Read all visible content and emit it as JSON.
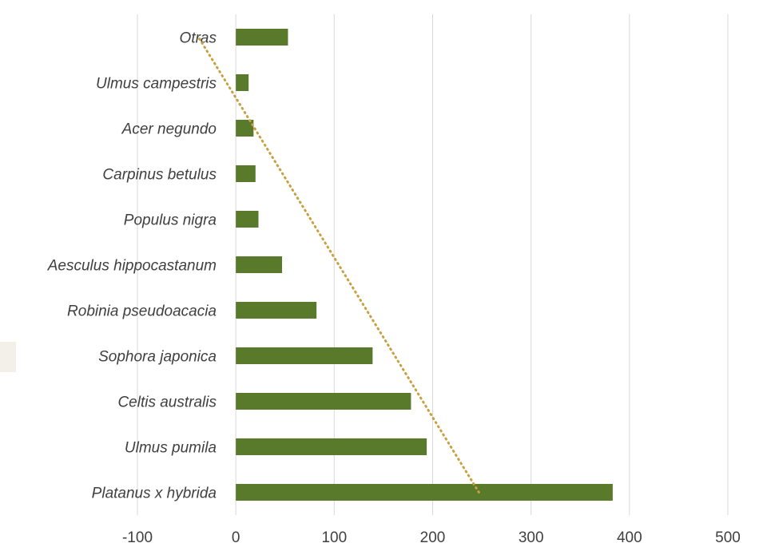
{
  "chart_data": {
    "type": "bar",
    "orientation": "horizontal",
    "categories": [
      "Platanus x hybrida",
      "Ulmus pumila",
      "Celtis australis",
      "Sophora japonica",
      "Robinia pseudoacacia",
      "Aesculus hippocastanum",
      "Populus nigra",
      "Carpinus betulus",
      "Acer negundo",
      "Ulmus campestris",
      "Otras"
    ],
    "values": [
      383,
      194,
      178,
      139,
      82,
      47,
      23,
      20,
      18,
      13,
      53
    ],
    "xlim": [
      -100,
      500
    ],
    "xticks": [
      "-100",
      "0",
      "100",
      "200",
      "300",
      "400",
      "500"
    ],
    "grid": true,
    "trendline": {
      "type": "linear",
      "style": "dotted",
      "from": {
        "category": "Platanus x hybrida",
        "value": 247
      },
      "to": {
        "category": "Otras",
        "value": -38
      }
    },
    "colors": {
      "bar": "#5a7a2b",
      "trend": "#c8a040",
      "grid": "#d9d9d9",
      "text": "#404040"
    },
    "title": "",
    "xlabel": "",
    "ylabel": ""
  },
  "side_fragment": {
    "text": ")"
  }
}
